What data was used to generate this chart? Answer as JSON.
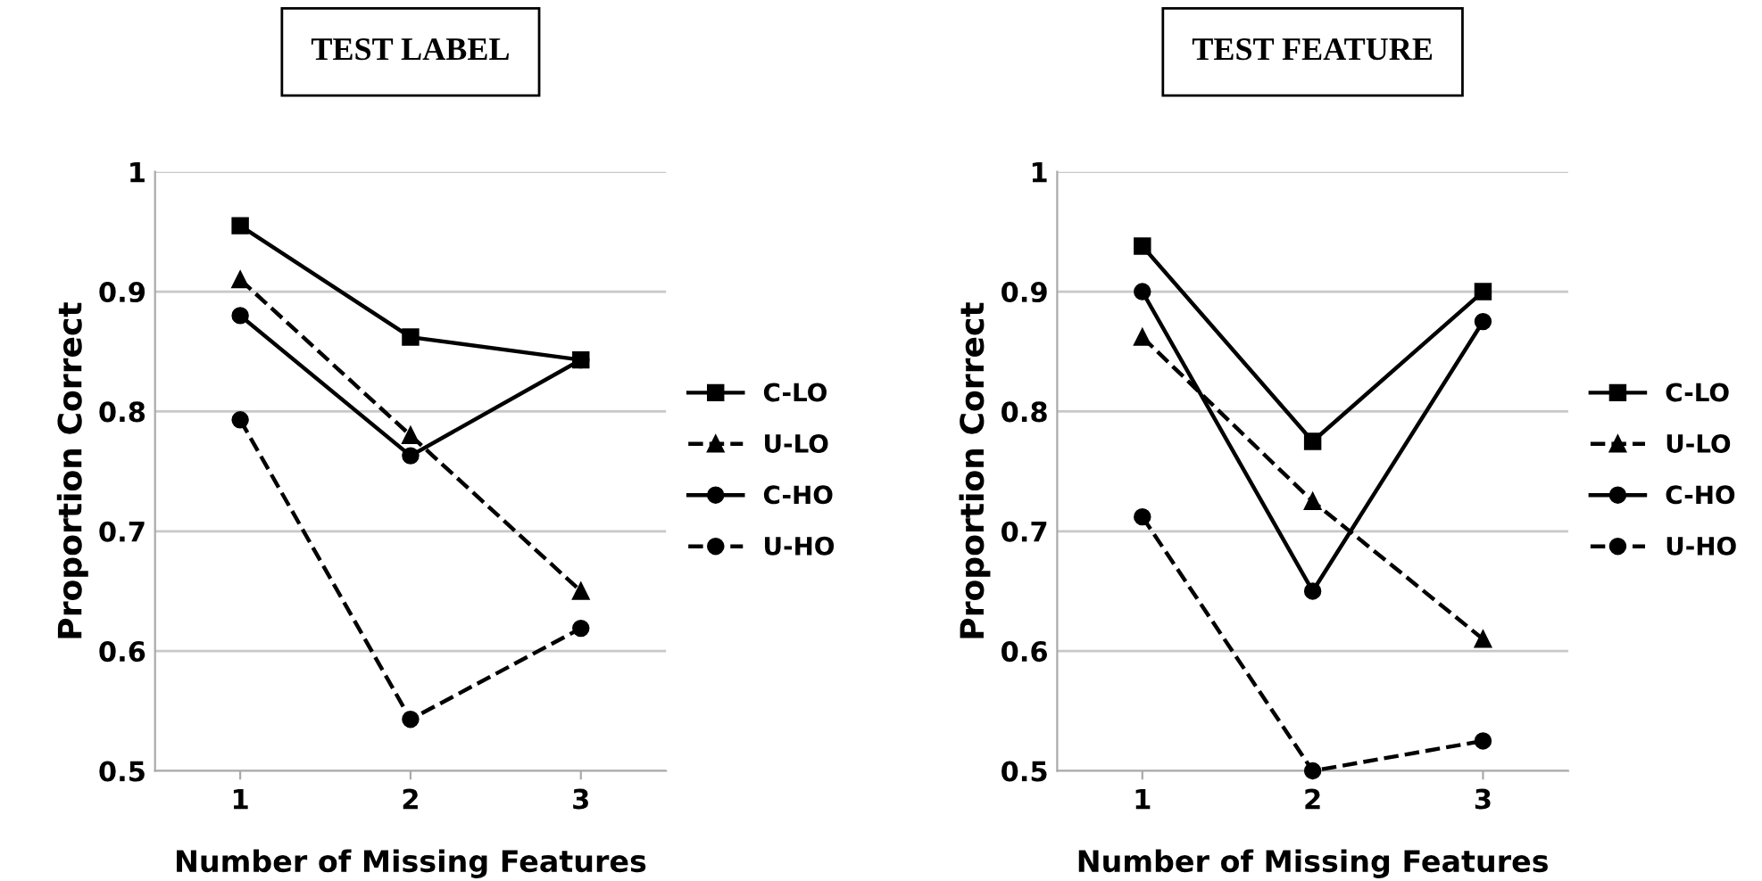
{
  "chart_data": [
    {
      "type": "line",
      "title": "TEST LABEL",
      "xlabel": "Number of Missing Features",
      "ylabel": "Proportion Correct",
      "categories": [
        "1",
        "2",
        "3"
      ],
      "ylim": [
        0.5,
        1
      ],
      "yticks": [
        0.5,
        0.6,
        0.7,
        0.8,
        0.9,
        1
      ],
      "grid": "y",
      "legend": "right",
      "series": [
        {
          "name": "C-LO",
          "color": "#000000",
          "marker": "square",
          "line_style": "solid",
          "values": [
            0.955,
            0.862,
            0.843
          ]
        },
        {
          "name": "U-LO",
          "color": "#000000",
          "marker": "triangle",
          "line_style": "dashed",
          "values": [
            0.91,
            0.78,
            0.65
          ]
        },
        {
          "name": "C-HO",
          "color": "#000000",
          "marker": "circle",
          "line_style": "solid",
          "values": [
            0.88,
            0.763,
            0.843
          ]
        },
        {
          "name": "U-HO",
          "color": "#000000",
          "marker": "circle",
          "line_style": "dashed",
          "values": [
            0.793,
            0.543,
            0.619
          ]
        }
      ]
    },
    {
      "type": "line",
      "title": "TEST FEATURE",
      "xlabel": "Number of Missing Features",
      "ylabel": "Proportion Correct",
      "categories": [
        "1",
        "2",
        "3"
      ],
      "ylim": [
        0.5,
        1
      ],
      "yticks": [
        0.5,
        0.6,
        0.7,
        0.8,
        0.9,
        1
      ],
      "grid": "y",
      "legend": "right",
      "series": [
        {
          "name": "C-LO",
          "color": "#000000",
          "marker": "square",
          "line_style": "solid",
          "values": [
            0.938,
            0.775,
            0.9
          ]
        },
        {
          "name": "U-LO",
          "color": "#000000",
          "marker": "triangle",
          "line_style": "dashed",
          "values": [
            0.862,
            0.725,
            0.61
          ]
        },
        {
          "name": "C-HO",
          "color": "#000000",
          "marker": "circle",
          "line_style": "solid",
          "values": [
            0.9,
            0.65,
            0.875
          ]
        },
        {
          "name": "U-HO",
          "color": "#000000",
          "marker": "circle",
          "line_style": "dashed",
          "values": [
            0.712,
            0.5,
            0.525
          ]
        }
      ]
    }
  ]
}
